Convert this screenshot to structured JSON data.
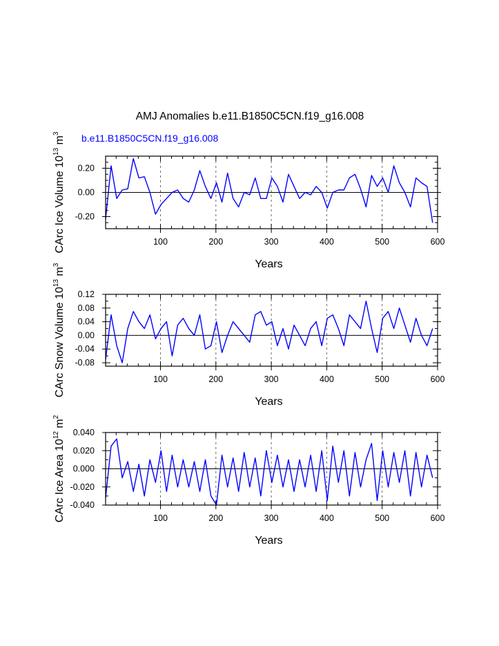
{
  "figure": {
    "title": "AMJ Anomalies b.e11.B1850C5CN.f19_g16.008",
    "case_label": "b.e11.B1850C5CN.f19_g16.008"
  },
  "chart_data": [
    {
      "type": "line",
      "title": "",
      "xlabel": "Years",
      "ylabel_main": "CArc Ice Volume 10",
      "ylabel_exp": "13",
      "ylabel_unit": " m",
      "ylabel_unit_exp": "3",
      "xlim": [
        1,
        600
      ],
      "ylim": [
        -0.3,
        0.3
      ],
      "xticks": [
        100,
        200,
        300,
        400,
        500,
        600
      ],
      "xtick_labels": [
        "100",
        "200",
        "300",
        "400",
        "500",
        "600"
      ],
      "yticks": [
        -0.2,
        0.0,
        0.2
      ],
      "ytick_labels": [
        "-0.20",
        "0.00",
        "0.20"
      ],
      "minor_y_step": 0.05,
      "grid_x": [
        100,
        200,
        300,
        400,
        500
      ],
      "zero_line": true,
      "series": [
        {
          "name": "b.e11.B1850C5CN.f19_g16.008",
          "color": "#0000ff",
          "x_start": 1,
          "x_step": 10,
          "values": [
            -0.22,
            0.22,
            -0.05,
            0.02,
            0.03,
            0.28,
            0.12,
            0.13,
            0.0,
            -0.18,
            -0.1,
            -0.05,
            0.0,
            0.02,
            -0.05,
            -0.08,
            0.02,
            0.18,
            0.05,
            -0.05,
            0.08,
            -0.08,
            0.16,
            -0.05,
            -0.12,
            0.0,
            -0.02,
            0.12,
            -0.05,
            -0.05,
            0.12,
            0.05,
            -0.08,
            0.15,
            0.05,
            -0.05,
            0.0,
            -0.02,
            0.05,
            0.0,
            -0.13,
            0.0,
            0.02,
            0.02,
            0.12,
            0.15,
            0.03,
            -0.12,
            0.14,
            0.05,
            0.12,
            0.0,
            0.22,
            0.08,
            0.0,
            -0.12,
            0.12,
            0.08,
            0.05,
            -0.25
          ]
        }
      ]
    },
    {
      "type": "line",
      "title": "",
      "xlabel": "Years",
      "ylabel_main": "CArc Snow Volume 10",
      "ylabel_exp": "13",
      "ylabel_unit": " m",
      "ylabel_unit_exp": "3",
      "xlim": [
        1,
        600
      ],
      "ylim": [
        -0.09,
        0.12
      ],
      "xticks": [
        100,
        200,
        300,
        400,
        500,
        600
      ],
      "xtick_labels": [
        "100",
        "200",
        "300",
        "400",
        "500",
        "600"
      ],
      "yticks": [
        -0.08,
        -0.04,
        0.0,
        0.04,
        0.08,
        0.12
      ],
      "ytick_labels": [
        "-0.08",
        "-0.04",
        "0.00",
        "0.04",
        "0.08",
        "0.12"
      ],
      "minor_y_step": 0.02,
      "grid_x": [
        100,
        200,
        300,
        400,
        500
      ],
      "zero_line": true,
      "series": [
        {
          "name": "b.e11.B1850C5CN.f19_g16.008",
          "color": "#0000ff",
          "x_start": 1,
          "x_step": 10,
          "values": [
            -0.07,
            0.06,
            -0.03,
            -0.08,
            0.02,
            0.07,
            0.04,
            0.02,
            0.06,
            -0.01,
            0.02,
            0.04,
            -0.06,
            0.03,
            0.05,
            0.02,
            0.0,
            0.06,
            -0.04,
            -0.03,
            0.04,
            -0.05,
            0.0,
            0.04,
            0.02,
            0.0,
            -0.02,
            0.06,
            0.07,
            0.03,
            0.04,
            -0.03,
            0.02,
            -0.04,
            0.03,
            0.0,
            -0.03,
            0.02,
            0.04,
            -0.03,
            0.05,
            0.06,
            0.02,
            -0.03,
            0.06,
            0.04,
            0.02,
            0.1,
            0.02,
            -0.05,
            0.05,
            0.07,
            0.02,
            0.08,
            0.03,
            -0.02,
            0.05,
            0.0,
            -0.03,
            0.02
          ]
        }
      ]
    },
    {
      "type": "line",
      "title": "",
      "xlabel": "Years",
      "ylabel_main": "CArc Ice Area 10",
      "ylabel_exp": "12",
      "ylabel_unit": " m",
      "ylabel_unit_exp": "2",
      "xlim": [
        1,
        600
      ],
      "ylim": [
        -0.04,
        0.04
      ],
      "xticks": [
        100,
        200,
        300,
        400,
        500,
        600
      ],
      "xtick_labels": [
        "100",
        "200",
        "300",
        "400",
        "500",
        "600"
      ],
      "yticks": [
        -0.04,
        -0.02,
        0.0,
        0.02,
        0.04
      ],
      "ytick_labels": [
        "-0.040",
        "-0.020",
        "0.000",
        "0.020",
        "0.040"
      ],
      "minor_y_step": 0.01,
      "grid_x": [
        100,
        200,
        300,
        400,
        500
      ],
      "zero_line": true,
      "series": [
        {
          "name": "b.e11.B1850C5CN.f19_g16.008",
          "color": "#0000ff",
          "x_start": 1,
          "x_step": 10,
          "values": [
            -0.032,
            0.025,
            0.033,
            -0.01,
            0.008,
            -0.025,
            0.005,
            -0.03,
            0.01,
            -0.015,
            0.02,
            -0.025,
            0.015,
            -0.02,
            0.01,
            -0.02,
            0.008,
            -0.025,
            0.01,
            -0.03,
            -0.04,
            0.015,
            -0.02,
            0.012,
            -0.025,
            0.018,
            -0.02,
            0.012,
            -0.03,
            0.02,
            -0.015,
            0.015,
            -0.02,
            0.01,
            -0.025,
            0.01,
            -0.02,
            0.015,
            -0.025,
            0.02,
            -0.035,
            0.025,
            -0.015,
            0.02,
            -0.03,
            0.018,
            -0.02,
            0.01,
            0.028,
            -0.035,
            0.02,
            -0.02,
            0.018,
            -0.015,
            0.02,
            -0.03,
            0.018,
            -0.02,
            0.015,
            -0.01
          ]
        }
      ]
    }
  ]
}
